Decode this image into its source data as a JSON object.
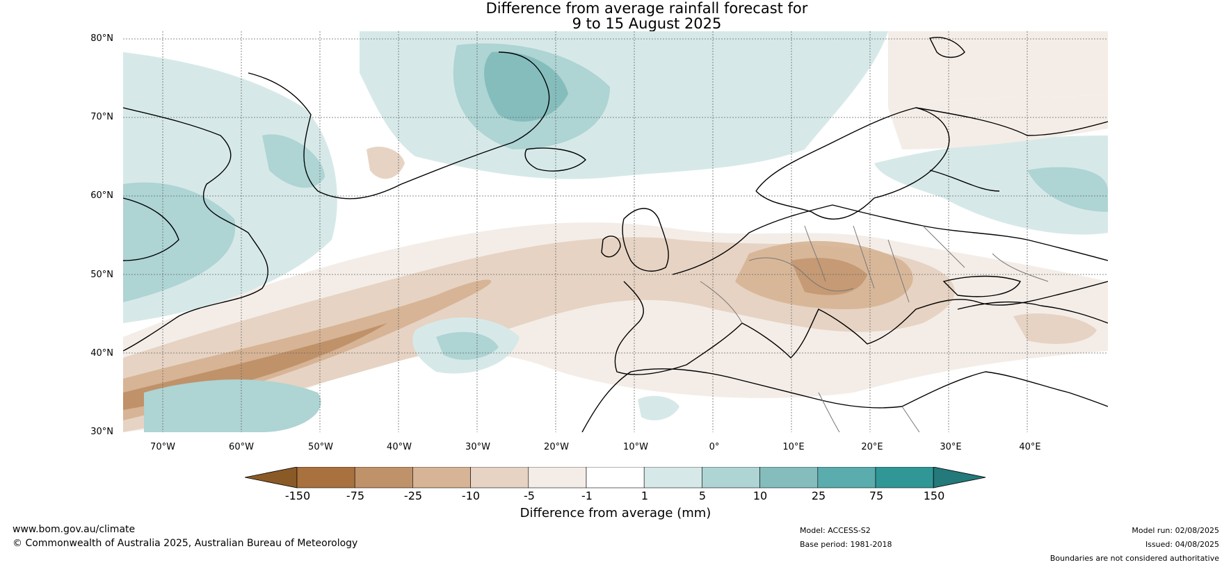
{
  "title": {
    "line1": "Difference from average rainfall forecast for",
    "line2": "9 to 15 August 2025"
  },
  "map": {
    "lat_labels": [
      "80°N",
      "70°N",
      "60°N",
      "50°N",
      "40°N",
      "30°N"
    ],
    "lon_labels": [
      "70°W",
      "60°W",
      "50°W",
      "40°W",
      "30°W",
      "20°W",
      "10°W",
      "0°",
      "10°E",
      "20°E",
      "30°E",
      "40°E"
    ],
    "extent": {
      "lon_min": -75,
      "lon_max": 50,
      "lat_min": 30,
      "lat_max": 81
    }
  },
  "colorbar": {
    "ticks": [
      "-150",
      "-75",
      "-25",
      "-10",
      "-5",
      "-1",
      "1",
      "5",
      "10",
      "25",
      "75",
      "150"
    ],
    "colors": [
      "#8a5a26",
      "#a8713e",
      "#c0926a",
      "#d6b495",
      "#e6d3c3",
      "#f4ede7",
      "#ffffff",
      "#d6e9e8",
      "#aed4d4",
      "#85bdbd",
      "#5aacad",
      "#309796",
      "#24797a"
    ],
    "label": "Difference from average (mm)"
  },
  "footer": {
    "website": "www.bom.gov.au/climate",
    "copyright": "© Commonwealth of Australia 2025, Australian Bureau of Meteorology",
    "model": "Model: ACCESS-S2",
    "base_period": "Base period: 1981-2018",
    "model_run": "Model run: 02/08/2025",
    "issued": "Issued: 04/08/2025",
    "disclaimer": "Boundaries are not considered authoritative"
  }
}
